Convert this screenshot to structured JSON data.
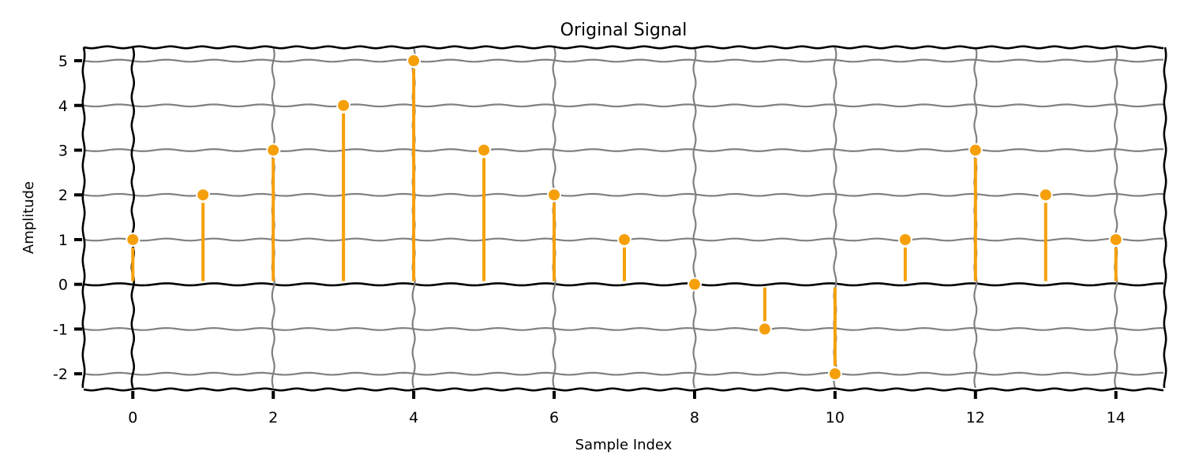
{
  "chart_data": {
    "type": "stem",
    "title": "Original Signal",
    "xlabel": "Sample Index",
    "ylabel": "Amplitude",
    "x": [
      0,
      1,
      2,
      3,
      4,
      5,
      6,
      7,
      8,
      9,
      10,
      11,
      12,
      13,
      14
    ],
    "y": [
      1,
      2,
      3,
      4,
      5,
      3,
      2,
      1,
      0,
      -1,
      -2,
      1,
      3,
      2,
      1
    ],
    "xlim": [
      -0.7,
      14.7
    ],
    "ylim": [
      -2.35,
      5.3
    ],
    "xticks": [
      0,
      2,
      4,
      6,
      8,
      10,
      12,
      14
    ],
    "yticks": [
      -2,
      -1,
      0,
      1,
      2,
      3,
      4,
      5
    ],
    "grid": true,
    "baseline": 0,
    "colors": {
      "stem": "#f5a00a",
      "marker": "#f5a00a",
      "marker_edge": "#ffffff",
      "grid": "#808080",
      "axes": "#000000"
    }
  }
}
